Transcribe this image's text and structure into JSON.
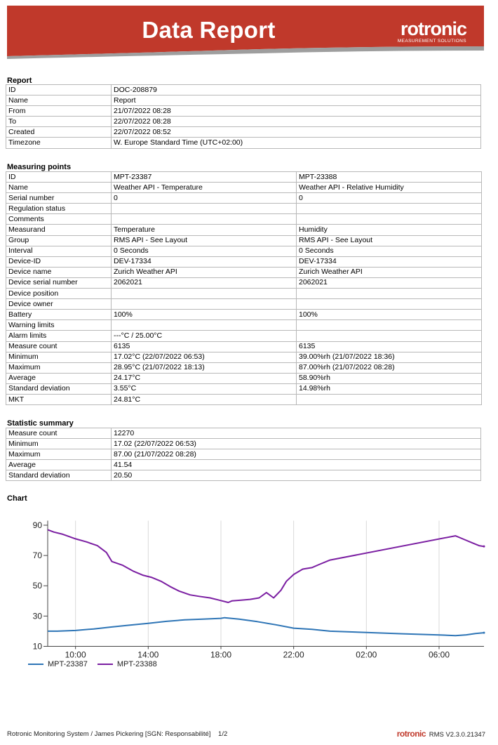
{
  "header": {
    "title": "Data Report",
    "brand_name": "rotronic",
    "brand_tagline": "MEASUREMENT SOLUTIONS",
    "brand_color": "#c0392b"
  },
  "report": {
    "section_title": "Report",
    "rows": [
      [
        "ID",
        "DOC-208879"
      ],
      [
        "Name",
        "Report"
      ],
      [
        "From",
        "21/07/2022 08:28"
      ],
      [
        "To",
        "22/07/2022 08:28"
      ],
      [
        "Created",
        "22/07/2022 08:52"
      ],
      [
        "Timezone",
        "W. Europe Standard Time (UTC+02:00)"
      ]
    ]
  },
  "measuring_points": {
    "section_title": "Measuring points",
    "rows": [
      [
        "ID",
        "MPT-23387",
        "MPT-23388"
      ],
      [
        "Name",
        "Weather API - Temperature",
        "Weather API - Relative Humidity"
      ],
      [
        "Serial number",
        "0",
        "0"
      ],
      [
        "Regulation status",
        "",
        ""
      ],
      [
        "Comments",
        "",
        ""
      ],
      [
        "Measurand",
        "Temperature",
        "Humidity"
      ],
      [
        "Group",
        "RMS API - See Layout",
        "RMS API - See Layout"
      ],
      [
        "Interval",
        "0 Seconds",
        "0 Seconds"
      ],
      [
        "Device-ID",
        "DEV-17334",
        "DEV-17334"
      ],
      [
        "Device name",
        "Zurich Weather API",
        "Zurich Weather API"
      ],
      [
        "Device serial number",
        "2062021",
        "2062021"
      ],
      [
        "Device position",
        "",
        ""
      ],
      [
        "Device owner",
        "",
        ""
      ],
      [
        "Battery",
        "100%",
        "100%"
      ],
      [
        "Warning limits",
        "",
        ""
      ],
      [
        "Alarm limits",
        "---°C / 25.00°C",
        ""
      ],
      [
        "Measure count",
        "6135",
        "6135"
      ],
      [
        "Minimum",
        "17.02°C (22/07/2022 06:53)",
        "39.00%rh (21/07/2022 18:36)"
      ],
      [
        "Maximum",
        "28.95°C (21/07/2022 18:13)",
        "87.00%rh (21/07/2022 08:28)"
      ],
      [
        "Average",
        "24.17°C",
        "58.90%rh"
      ],
      [
        "Standard deviation",
        "3.55°C",
        "14.98%rh"
      ],
      [
        "MKT",
        "24.81°C",
        ""
      ]
    ]
  },
  "statistic_summary": {
    "section_title": "Statistic summary",
    "rows": [
      [
        "Measure count",
        "12270"
      ],
      [
        "Minimum",
        "17.02 (22/07/2022 06:53)"
      ],
      [
        "Maximum",
        "87.00 (21/07/2022 08:28)"
      ],
      [
        "Average",
        "41.54"
      ],
      [
        "Standard deviation",
        "20.50"
      ]
    ]
  },
  "chart_section_title": "Chart",
  "chart_data": {
    "type": "line",
    "title": "",
    "xlabel": "",
    "ylabel": "",
    "x_tick_labels": [
      "10:00",
      "14:00",
      "18:00",
      "22:00",
      "02:00",
      "06:00"
    ],
    "x_tick_hours": [
      10,
      14,
      18,
      22,
      26,
      30
    ],
    "xlim_hours": [
      8.47,
      32.47
    ],
    "y_ticks": [
      10,
      30,
      50,
      70,
      90
    ],
    "ylim": [
      10,
      93
    ],
    "grid": "vertical",
    "legend_position": "bottom-left",
    "series": [
      {
        "name": "MPT-23387",
        "color": "#2e75b6",
        "x_hours": [
          8.47,
          9.0,
          10.0,
          11.0,
          12.0,
          13.0,
          14.0,
          15.0,
          16.0,
          17.0,
          18.0,
          18.2,
          19.0,
          20.0,
          21.0,
          22.0,
          23.0,
          24.0,
          26.0,
          28.0,
          30.0,
          30.9,
          31.5,
          32.0,
          32.47
        ],
        "values": [
          20.0,
          20.0,
          20.5,
          21.5,
          22.8,
          24.0,
          25.2,
          26.5,
          27.5,
          28.0,
          28.5,
          28.9,
          28.0,
          26.3,
          24.3,
          22.0,
          21.2,
          20.0,
          19.2,
          18.3,
          17.5,
          17.1,
          17.6,
          18.5,
          19.0
        ]
      },
      {
        "name": "MPT-23388",
        "color": "#7b1fa2",
        "x_hours": [
          8.47,
          8.8,
          9.3,
          10.0,
          10.6,
          11.2,
          11.7,
          12.0,
          12.6,
          13.2,
          13.7,
          14.2,
          14.7,
          15.2,
          15.7,
          16.3,
          16.8,
          17.4,
          17.9,
          18.4,
          18.6,
          19.1,
          19.6,
          20.1,
          20.5,
          20.9,
          21.3,
          21.6,
          22.0,
          22.5,
          23.0,
          23.4,
          24.0,
          30.9,
          31.4,
          31.8,
          32.2,
          32.47
        ],
        "values": [
          87.0,
          85.5,
          84.0,
          81.0,
          79.0,
          76.5,
          72.0,
          66.0,
          63.5,
          59.5,
          57.0,
          55.5,
          53.0,
          49.5,
          46.5,
          44.0,
          43.0,
          42.0,
          40.5,
          39.0,
          40.0,
          40.5,
          41.0,
          42.0,
          45.5,
          42.0,
          47.0,
          53.0,
          57.5,
          61.0,
          62.0,
          64.0,
          67.0,
          83.0,
          80.5,
          78.5,
          76.5,
          76.0
        ]
      }
    ]
  },
  "footer": {
    "left_text": "Rotronic Monitoring System / James Pickering [SGN: Responsabilité]",
    "page": "1/2",
    "brand": "rotronic",
    "version": "RMS V2.3.0.21347"
  }
}
